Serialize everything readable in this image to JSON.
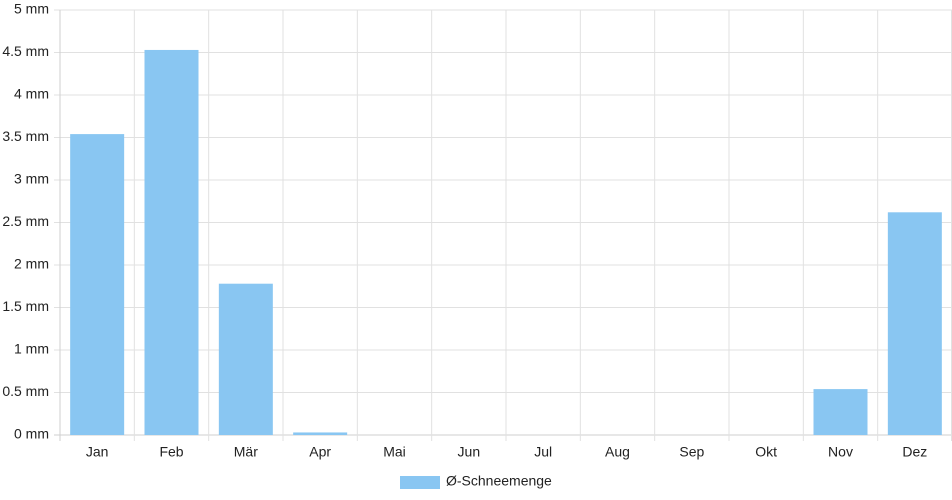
{
  "chart_data": {
    "type": "bar",
    "categories": [
      "Jan",
      "Feb",
      "Mär",
      "Apr",
      "Mai",
      "Jun",
      "Jul",
      "Aug",
      "Sep",
      "Okt",
      "Nov",
      "Dez"
    ],
    "series": [
      {
        "name": "Ø-Schneemenge",
        "color": "#89c6f2",
        "values": [
          3.54,
          4.53,
          1.78,
          0.03,
          0,
          0,
          0,
          0,
          0,
          0,
          0.54,
          2.62
        ]
      }
    ],
    "ylim": [
      0,
      5
    ],
    "yticks": [
      {
        "value": 0,
        "label": "0 mm"
      },
      {
        "value": 0.5,
        "label": "0.5 mm"
      },
      {
        "value": 1,
        "label": "1 mm"
      },
      {
        "value": 1.5,
        "label": "1.5 mm"
      },
      {
        "value": 2,
        "label": "2 mm"
      },
      {
        "value": 2.5,
        "label": "2.5 mm"
      },
      {
        "value": 3,
        "label": "3 mm"
      },
      {
        "value": 3.5,
        "label": "3.5 mm"
      },
      {
        "value": 4,
        "label": "4 mm"
      },
      {
        "value": 4.5,
        "label": "4.5 mm"
      },
      {
        "value": 5,
        "label": "5 mm"
      }
    ],
    "grid": true,
    "legend": "bottom"
  }
}
